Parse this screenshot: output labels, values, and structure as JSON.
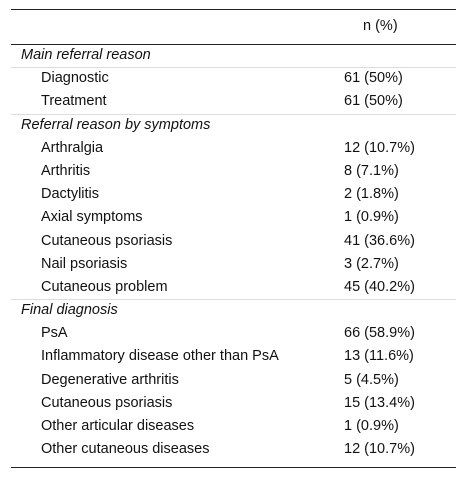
{
  "header": {
    "column_label": "n (%)"
  },
  "sections": [
    {
      "title": "Main referral reason",
      "rows": [
        {
          "label": "Diagnostic",
          "value": "61 (50%)"
        },
        {
          "label": "Treatment",
          "value": "61 (50%)"
        }
      ]
    },
    {
      "title": "Referral reason by symptoms",
      "rows": [
        {
          "label": "Arthralgia",
          "value": "12 (10.7%)"
        },
        {
          "label": "Arthritis",
          "value": "8 (7.1%)"
        },
        {
          "label": "Dactylitis",
          "value": "2 (1.8%)"
        },
        {
          "label": "Axial symptoms",
          "value": "1 (0.9%)"
        },
        {
          "label": "Cutaneous psoriasis",
          "value": "41 (36.6%)"
        },
        {
          "label": "Nail psoriasis",
          "value": "3 (2.7%)"
        },
        {
          "label": "Cutaneous problem",
          "value": "45 (40.2%)"
        }
      ]
    },
    {
      "title": "Final diagnosis",
      "rows": [
        {
          "label": "PsA",
          "value": "66 (58.9%)"
        },
        {
          "label": "Inflammatory disease other than PsA",
          "value": "13 (11.6%)"
        },
        {
          "label": "Degenerative arthritis",
          "value": "5 (4.5%)"
        },
        {
          "label": "Cutaneous psoriasis",
          "value": "15 (13.4%)"
        },
        {
          "label": "Other articular diseases",
          "value": "1 (0.9%)"
        },
        {
          "label": "Other cutaneous diseases",
          "value": "12 (10.7%)"
        }
      ]
    }
  ]
}
